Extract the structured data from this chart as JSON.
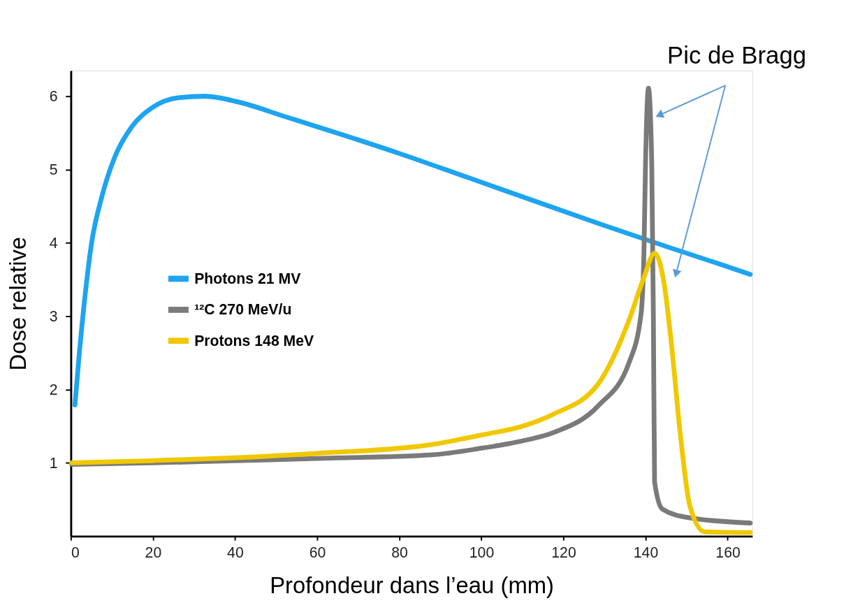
{
  "chart_data": {
    "type": "line",
    "xlabel": "Profondeur dans l’eau (mm)",
    "ylabel": "Dose relative",
    "xlim": [
      0,
      166
    ],
    "ylim": [
      0,
      6.35
    ],
    "xticks": [
      0,
      20,
      40,
      60,
      80,
      100,
      120,
      140,
      160
    ],
    "yticks": [
      1,
      2,
      3,
      4,
      5,
      6
    ],
    "grid": false,
    "legend": "left",
    "marker": "none",
    "line_style": "solid",
    "annotations": [
      {
        "text": "Pic de Bragg",
        "x": 140.7,
        "y": 6.11
      }
    ],
    "series": [
      {
        "name": "Photons 21 MV",
        "color": "#1ea4f0",
        "x": [
          1.0,
          2.1,
          3.4,
          5.0,
          7.5,
          10.7,
          14.8,
          19.7,
          26.2,
          32.7,
          40.9,
          52.3,
          65.3,
          80,
          96.3,
          112.5,
          128.8,
          145.1,
          158.1,
          165.5
        ],
        "values": [
          1.79,
          2.52,
          3.25,
          3.98,
          4.62,
          5.17,
          5.58,
          5.84,
          5.98,
          6.0,
          5.92,
          5.72,
          5.49,
          5.22,
          4.9,
          4.58,
          4.26,
          3.95,
          3.71,
          3.57
        ]
      },
      {
        "name": "¹²C 270 MeV/u",
        "color": "#7a7a7a",
        "x": [
          0.2,
          20,
          40,
          60,
          88,
          100,
          110,
          117.4,
          128.5,
          136,
          138.9,
          139.6,
          140,
          140.7,
          141.5,
          141.9,
          142.2,
          144.1,
          150.8,
          165.5
        ],
        "values": [
          0.98,
          1.0,
          1.03,
          1.06,
          1.11,
          1.2,
          1.3,
          1.41,
          1.78,
          2.37,
          3.03,
          3.86,
          5.11,
          6.11,
          5.11,
          3.03,
          0.74,
          0.37,
          0.25,
          0.18
        ]
      },
      {
        "name": "Protons 148 MeV",
        "color": "#f0c800",
        "x": [
          0.2,
          20,
          40,
          60,
          88,
          100,
          110,
          117.4,
          128.5,
          136,
          139.6,
          142.2,
          144.5,
          146.3,
          148.5,
          150.8,
          154.4,
          165.5
        ],
        "values": [
          1.0,
          1.03,
          1.07,
          1.13,
          1.25,
          1.38,
          1.5,
          1.66,
          2.08,
          2.95,
          3.53,
          3.86,
          3.45,
          2.62,
          1.37,
          0.41,
          0.06,
          0.05
        ]
      }
    ]
  }
}
